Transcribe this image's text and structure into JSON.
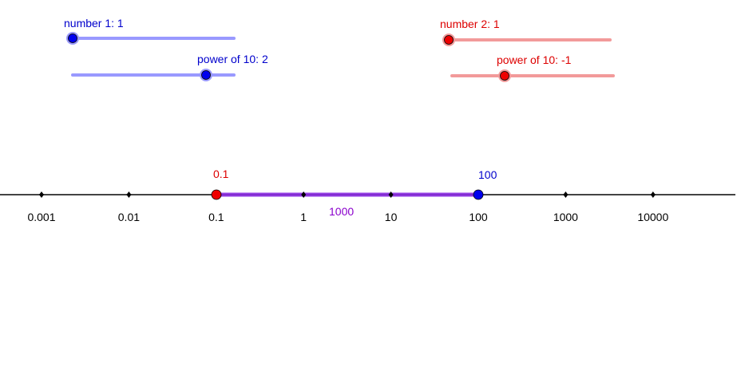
{
  "sliders": [
    {
      "label": "number 1: 1"
    },
    {
      "label": "power of 10: 2"
    },
    {
      "label": "number 2: 1"
    },
    {
      "label": "power of 10: -1"
    }
  ],
  "number_line": {
    "tick_labels": [
      "0.001",
      "0.01",
      "0.1",
      "1",
      "10",
      "100",
      "1000",
      "10000"
    ],
    "point_labels": [
      "0.1",
      "100"
    ],
    "segment_label": "1000"
  }
}
